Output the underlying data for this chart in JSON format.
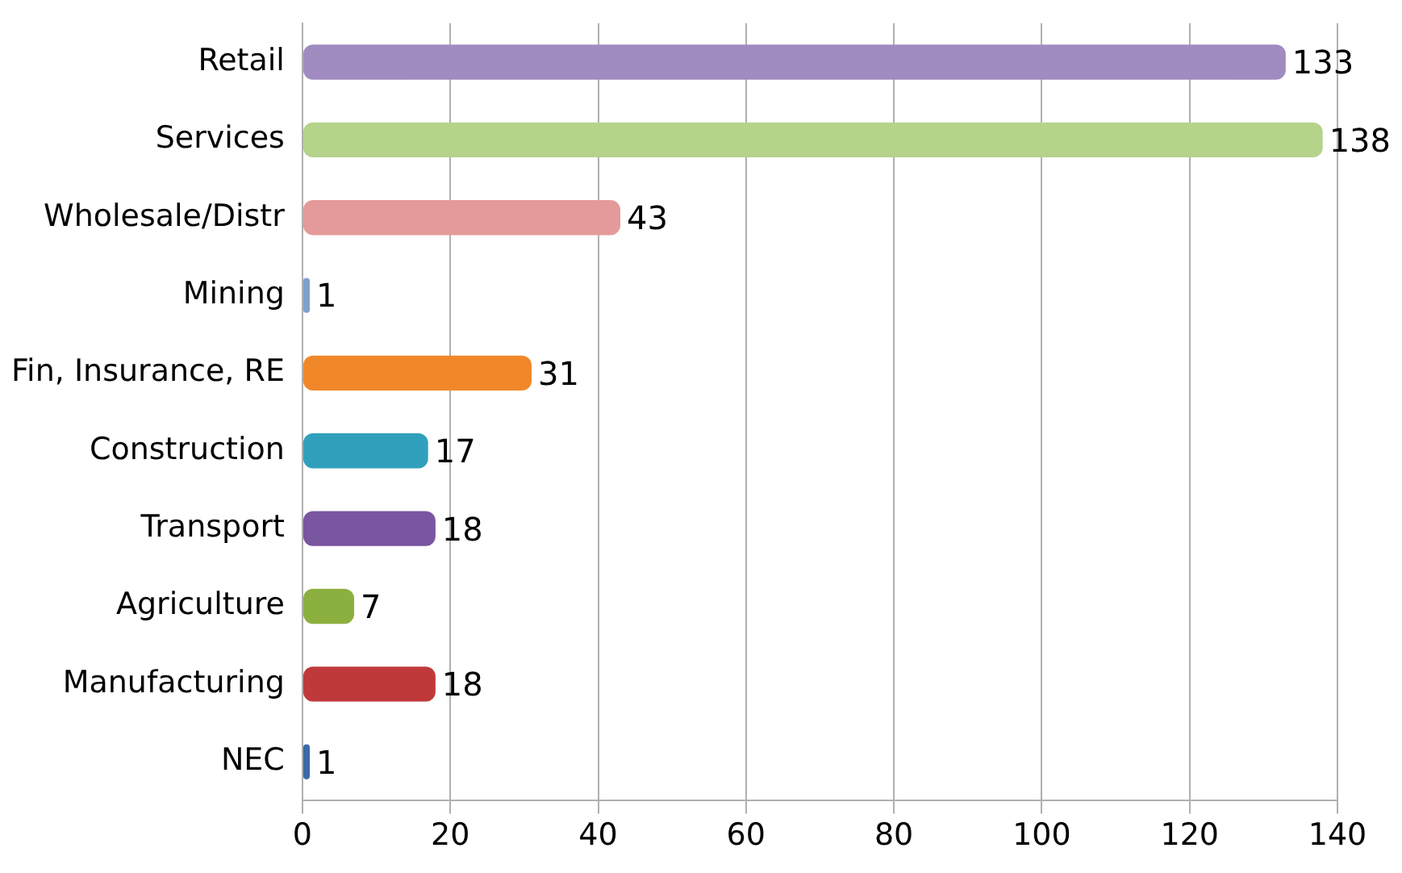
{
  "chart_data": {
    "type": "bar",
    "orientation": "horizontal",
    "categories": [
      "Retail",
      "Services",
      "Wholesale/Distr",
      "Mining",
      "Fin, Insurance, RE",
      "Construction",
      "Transport",
      "Agriculture",
      "Manufacturing",
      "NEC"
    ],
    "values": [
      133,
      138,
      43,
      1,
      31,
      17,
      18,
      7,
      18,
      1
    ],
    "colors": [
      "#a08cc0",
      "#b5d38a",
      "#e49a9a",
      "#7f9fcf",
      "#f0882a",
      "#31a0bd",
      "#7a55a0",
      "#8cb040",
      "#c0393a",
      "#3a6aa8"
    ],
    "xlim": [
      0,
      140
    ],
    "xticks": [
      0,
      20,
      40,
      60,
      80,
      100,
      120,
      140
    ],
    "grid": "x",
    "data_labels": true
  }
}
